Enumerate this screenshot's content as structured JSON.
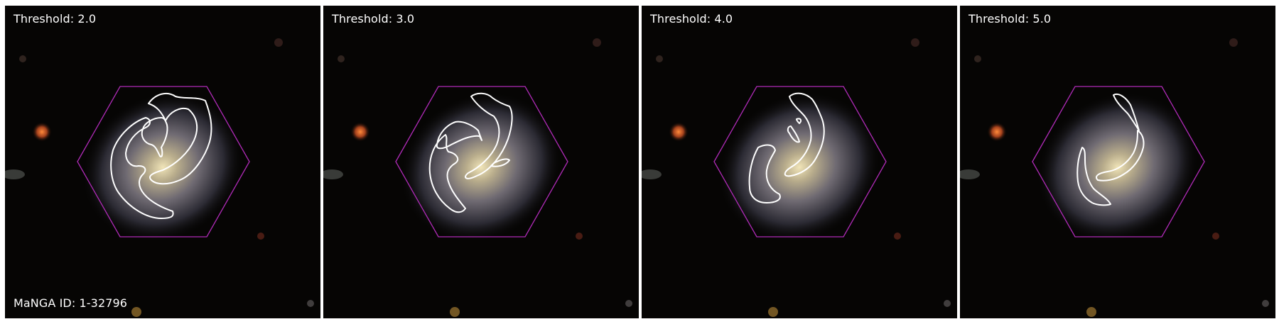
{
  "panels": [
    {
      "threshold_label": "Threshold: 2.0",
      "id_label": "MaNGA ID: 1-32796"
    },
    {
      "threshold_label": "Threshold: 3.0"
    },
    {
      "threshold_label": "Threshold: 4.0"
    },
    {
      "threshold_label": "Threshold: 5.0"
    }
  ],
  "colors": {
    "background": "#050403",
    "ifu_hexagon": "#b02bb8",
    "arm_contour": "#ffffff",
    "galaxy_core": "#e8dcae",
    "galaxy_halo": "#7f7a84"
  },
  "icons": [
    "galaxy-image",
    "ifu-hexagon-outline",
    "spiral-arm-contour",
    "star"
  ]
}
